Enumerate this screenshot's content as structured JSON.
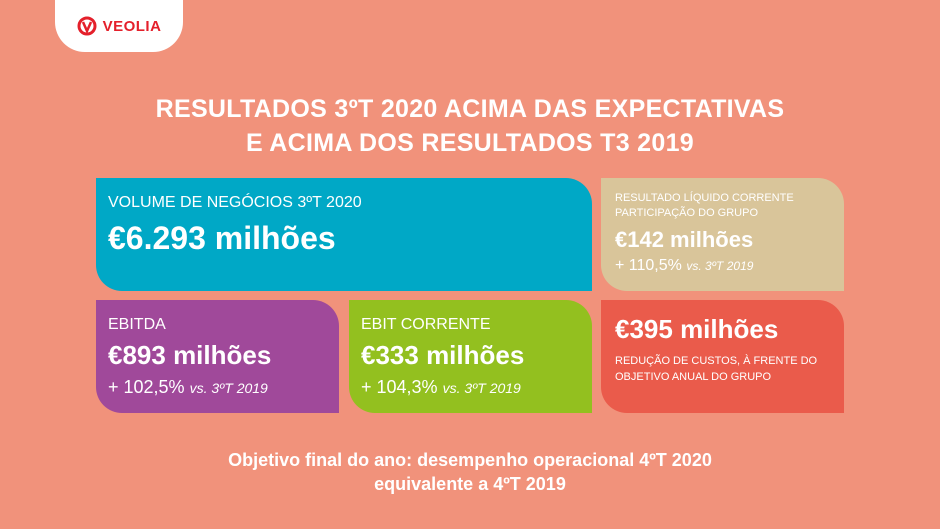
{
  "logo": {
    "text": "VEOLIA",
    "color": "#e4202b"
  },
  "headline": {
    "line1": "RESULTADOS 3ºT 2020 ACIMA DAS EXPECTATIVAS",
    "line2": "E ACIMA DOS RESULTADOS T3 2019"
  },
  "cards": {
    "volume": {
      "label": "VOLUME DE NEGÓCIOS 3ºT 2020",
      "value": "€6.293 milhões",
      "color": "#00a8c6"
    },
    "net": {
      "label_line1": "RESULTADO LÍQUIDO CORRENTE",
      "label_line2": "PARTICIPAÇÃO DO GRUPO",
      "value": "€142 milhões",
      "delta": "+ 110,5%",
      "vs": "vs. 3ºT 2019",
      "color": "#d9c59a"
    },
    "ebitda": {
      "label": "EBITDA",
      "value": "€893 milhões",
      "delta": "+ 102,5%",
      "vs": "vs. 3ºT 2019",
      "color": "#a0499a"
    },
    "ebit": {
      "label": "EBIT CORRENTE",
      "value": "€333 milhões",
      "delta": "+ 104,3%",
      "vs": "vs. 3ºT 2019",
      "color": "#93c01f"
    },
    "cost": {
      "value": "€395 milhões",
      "note_line1": "REDUÇÃO DE CUSTOS, À FRENTE DO",
      "note_line2": "OBJETIVO ANUAL DO GRUPO",
      "color": "#ea5b4b"
    }
  },
  "footer": {
    "line1": "Objetivo final do ano: desempenho operacional 4ºT 2020",
    "line2": "equivalente a 4ºT 2019"
  }
}
